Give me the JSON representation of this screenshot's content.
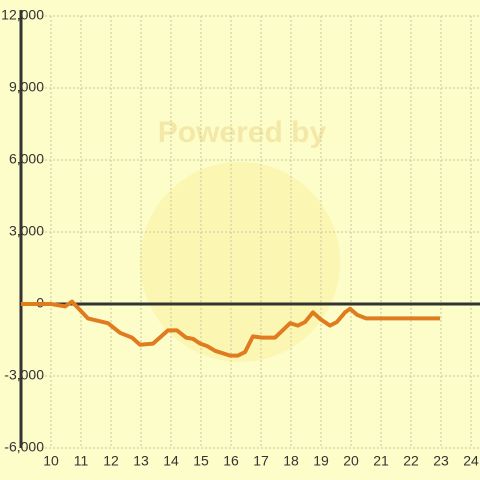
{
  "chart_data": {
    "type": "line",
    "watermark": "Powered by",
    "x": [
      9,
      10,
      10.47,
      10.7,
      11.23,
      11.9,
      12.3,
      12.7,
      12.97,
      13.4,
      13.9,
      14.2,
      14.5,
      14.73,
      14.97,
      15.2,
      15.47,
      15.97,
      16.23,
      16.47,
      16.73,
      17.03,
      17.47,
      17.97,
      18.23,
      18.47,
      18.73,
      19.0,
      19.3,
      19.53,
      19.8,
      19.97,
      20.2,
      20.5,
      22.97
    ],
    "series": [
      {
        "color": "#e07b20",
        "values": [
          0,
          0,
          -100,
          100,
          -600,
          -800,
          -1200,
          -1400,
          -1700,
          -1650,
          -1100,
          -1100,
          -1400,
          -1450,
          -1650,
          -1750,
          -1950,
          -2150,
          -2150,
          -2000,
          -1350,
          -1400,
          -1400,
          -800,
          -900,
          -750,
          -350,
          -650,
          -900,
          -750,
          -350,
          -200,
          -450,
          -600,
          -600
        ]
      }
    ],
    "xlim": [
      9,
      24.3
    ],
    "xticks": [
      10,
      11,
      12,
      13,
      14,
      15,
      16,
      17,
      18,
      19,
      20,
      21,
      22,
      23,
      24
    ],
    "ylim": [
      -6000,
      12000
    ],
    "yticks": [
      {
        "value": -6000,
        "label": "-6,000"
      },
      {
        "value": -3000,
        "label": "-3,000"
      },
      0,
      {
        "value": 3000,
        "label": "3,000"
      },
      {
        "value": 6000,
        "label": "6,000"
      },
      {
        "value": 9000,
        "label": "9,000"
      },
      {
        "value": 12000,
        "label": "12,000"
      }
    ],
    "grid": true
  }
}
